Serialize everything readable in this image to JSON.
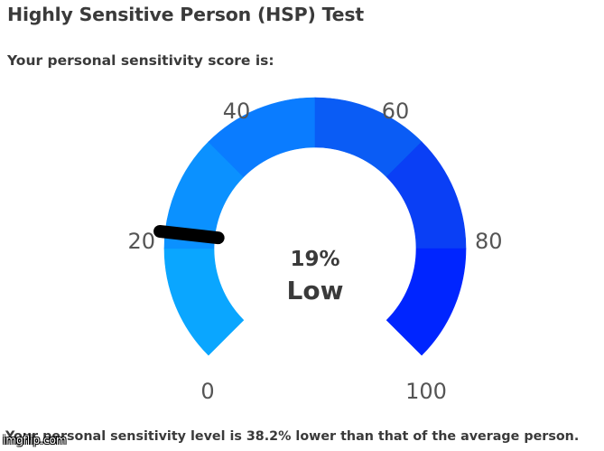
{
  "header": {
    "title": "Highly Sensitive Person (HSP) Test",
    "subtitle": "Your personal sensitivity score is:"
  },
  "gauge": {
    "score_percent": 19,
    "score_label": "19%",
    "level_label": "Low",
    "tick_labels": [
      "0",
      "20",
      "40",
      "60",
      "80",
      "100"
    ],
    "segment_colors": [
      "#0aa6ff",
      "#0b91ff",
      "#0a7cff",
      "#0a5cf5",
      "#0a3ff5",
      "#0025ff"
    ],
    "needle_color": "#000000"
  },
  "footer": {
    "text": "Your personal sensitivity level is 38.2% lower than that of the average person."
  },
  "watermark": {
    "text": "imgflip.com"
  }
}
